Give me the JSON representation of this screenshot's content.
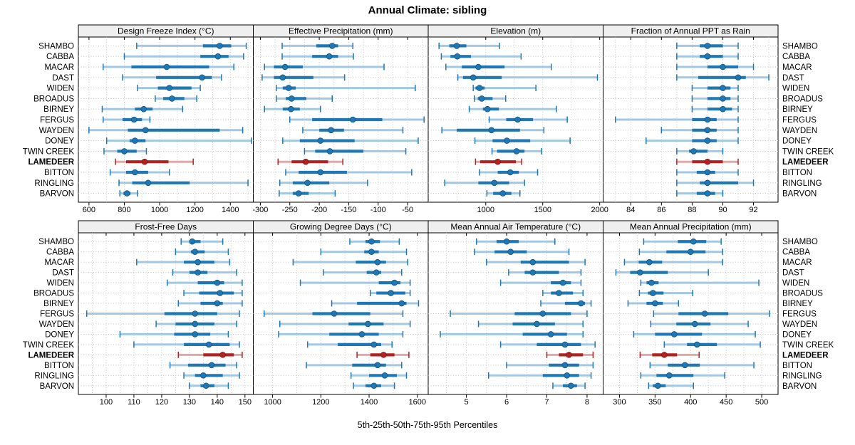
{
  "title": "Annual Climate: sibling",
  "xlabel": "5th-25th-50th-75th-95th Percentiles",
  "highlight_station": "LAMEDEER",
  "stations": [
    "SHAMBO",
    "CABBA",
    "MACAR",
    "DAST",
    "WIDEN",
    "BROADUS",
    "BIRNEY",
    "FERGUS",
    "WAYDEN",
    "DONEY",
    "TWIN CREEK",
    "LAMEDEER",
    "BITTON",
    "RINGLING",
    "BARVON"
  ],
  "colors": {
    "line": "#1F77B4",
    "line_light": "#A3C8E3",
    "line_dark": "#15557F",
    "highlight": "#B22222",
    "highlight_light": "#DFA8A8",
    "highlight_dark": "#7E1818",
    "strip_bg": "#EFEFEF",
    "panel_bg": "#FFFFFF",
    "border": "#000000",
    "grid": "#BFBFBF",
    "text": "#000000"
  },
  "chart_data": {
    "type": "dot-whisker-percentile-trellis",
    "percentiles": [
      "5th",
      "25th",
      "50th",
      "75th",
      "95th"
    ],
    "layout": {
      "rows": 2,
      "cols": 4,
      "legend": "none",
      "grid": "dotted"
    },
    "panels": [
      {
        "title": "Design Freeze Index (°C)",
        "row": 0,
        "col": 0,
        "domain": [
          540,
          1530
        ],
        "ticks": [
          600,
          800,
          1000,
          1200,
          1400
        ],
        "grid": [
          600,
          700,
          800,
          900,
          1000,
          1100,
          1200,
          1300,
          1400,
          1500
        ],
        "values": [
          [
            870,
            1245,
            1340,
            1405,
            1490
          ],
          [
            800,
            1230,
            1330,
            1390,
            1475
          ],
          [
            680,
            840,
            1040,
            1280,
            1420
          ],
          [
            790,
            980,
            1240,
            1295,
            1350
          ],
          [
            875,
            990,
            1055,
            1180,
            1230
          ],
          [
            975,
            1020,
            1070,
            1140,
            1210
          ],
          [
            675,
            860,
            910,
            960,
            1130
          ],
          [
            680,
            790,
            855,
            900,
            945
          ],
          [
            600,
            820,
            920,
            1340,
            1470
          ],
          [
            700,
            830,
            860,
            920,
            1520
          ],
          [
            685,
            760,
            800,
            870,
            925
          ],
          [
            750,
            810,
            915,
            1050,
            1190
          ],
          [
            720,
            810,
            860,
            935,
            1055
          ],
          [
            770,
            845,
            935,
            1170,
            1500
          ],
          [
            775,
            795,
            815,
            835,
            875
          ]
        ]
      },
      {
        "title": "Effective Precipitation (mm)",
        "row": 0,
        "col": 1,
        "domain": [
          -312,
          -15
        ],
        "ticks": [
          -300,
          -250,
          -200,
          -150,
          -100,
          -50
        ],
        "grid": [
          -300,
          -275,
          -250,
          -225,
          -200,
          -175,
          -150,
          -125,
          -100,
          -75,
          -50,
          -25
        ],
        "values": [
          [
            -263,
            -205,
            -178,
            -168,
            -143
          ],
          [
            -263,
            -212,
            -183,
            -168,
            -142
          ],
          [
            -293,
            -277,
            -258,
            -228,
            -90
          ],
          [
            -297,
            -277,
            -262,
            -210,
            -157
          ],
          [
            -273,
            -262,
            -252,
            -240,
            -37
          ],
          [
            -273,
            -257,
            -247,
            -222,
            -178
          ],
          [
            -293,
            -262,
            -248,
            -233,
            -198
          ],
          [
            -250,
            -212,
            -143,
            -93,
            -22
          ],
          [
            -228,
            -200,
            -180,
            -158,
            -58
          ],
          [
            -262,
            -233,
            -198,
            -140,
            -32
          ],
          [
            -225,
            -207,
            -182,
            -125,
            -53
          ],
          [
            -270,
            -247,
            -223,
            -185,
            -160
          ],
          [
            -257,
            -235,
            -198,
            -153,
            -43
          ],
          [
            -267,
            -245,
            -220,
            -183,
            -118
          ],
          [
            -268,
            -245,
            -235,
            -218,
            -173
          ]
        ]
      },
      {
        "title": "Elevation (m)",
        "row": 0,
        "col": 2,
        "domain": [
          495,
          2030
        ],
        "ticks": [
          1000,
          1500,
          2000
        ],
        "grid": [
          500,
          750,
          1000,
          1250,
          1500,
          1750,
          2000
        ],
        "values": [
          [
            590,
            680,
            745,
            830,
            1120
          ],
          [
            610,
            690,
            750,
            870,
            1310
          ],
          [
            650,
            790,
            935,
            1165,
            1575
          ],
          [
            755,
            800,
            890,
            1140,
            1980
          ],
          [
            890,
            910,
            945,
            990,
            1440
          ],
          [
            900,
            930,
            965,
            1060,
            1175
          ],
          [
            855,
            975,
            1015,
            1115,
            1620
          ],
          [
            1030,
            1180,
            1280,
            1415,
            1715
          ],
          [
            615,
            745,
            1050,
            1300,
            1510
          ],
          [
            905,
            1060,
            1185,
            1390,
            1740
          ],
          [
            1055,
            1100,
            1270,
            1340,
            1490
          ],
          [
            910,
            950,
            1105,
            1265,
            1315
          ],
          [
            945,
            1105,
            1215,
            1290,
            1455
          ],
          [
            640,
            935,
            1075,
            1205,
            1340
          ],
          [
            1010,
            1065,
            1150,
            1225,
            1300
          ]
        ]
      },
      {
        "title": "Fraction of Annual PPT as Rain",
        "row": 0,
        "col": 3,
        "domain": [
          82.2,
          93.6
        ],
        "ticks": [
          84,
          86,
          88,
          90,
          92
        ],
        "grid": [
          83,
          84,
          85,
          86,
          87,
          88,
          89,
          90,
          91,
          92,
          93
        ],
        "values": [
          [
            87,
            88.5,
            89,
            90,
            91
          ],
          [
            87,
            88.5,
            89,
            90,
            91
          ],
          [
            87,
            89,
            90,
            91,
            92
          ],
          [
            87,
            88.4,
            91,
            91.5,
            93
          ],
          [
            88,
            89,
            90,
            90.5,
            91
          ],
          [
            88,
            89,
            90,
            90.5,
            91
          ],
          [
            88,
            89,
            90,
            90.6,
            91
          ],
          [
            83,
            88,
            89,
            89.6,
            91
          ],
          [
            86,
            88,
            89,
            89.6,
            91
          ],
          [
            85,
            88,
            89,
            89.6,
            91
          ],
          [
            87,
            87.8,
            88.1,
            89,
            90
          ],
          [
            87,
            88,
            89,
            90,
            91
          ],
          [
            87,
            88.3,
            89,
            89.5,
            91
          ],
          [
            87,
            88.5,
            89,
            91,
            92
          ],
          [
            87,
            88.3,
            89,
            89.5,
            90
          ]
        ]
      },
      {
        "title": "Frost-Free Days",
        "row": 1,
        "col": 0,
        "domain": [
          90,
          153
        ],
        "ticks": [
          100,
          110,
          120,
          130,
          140,
          150
        ],
        "grid": [
          90,
          95,
          100,
          105,
          110,
          115,
          120,
          125,
          130,
          135,
          140,
          145,
          150
        ],
        "values": [
          [
            127,
            130,
            131,
            134,
            142
          ],
          [
            125,
            130.5,
            132,
            135.5,
            144
          ],
          [
            111,
            128,
            133,
            139,
            144.5
          ],
          [
            124,
            130,
            133,
            136.5,
            147
          ],
          [
            122,
            133,
            140,
            142.5,
            149
          ],
          [
            128,
            133.5,
            141,
            146,
            149
          ],
          [
            126,
            134,
            140,
            142,
            149
          ],
          [
            93,
            121,
            132,
            140,
            148
          ],
          [
            118,
            125,
            132,
            139,
            147
          ],
          [
            105,
            124.5,
            132,
            137.5,
            144
          ],
          [
            110,
            128,
            137,
            144.5,
            148
          ],
          [
            126,
            135,
            142,
            146,
            149
          ],
          [
            123,
            129.5,
            138,
            143,
            147
          ],
          [
            128,
            132,
            135,
            142,
            148
          ],
          [
            130,
            134,
            136,
            139,
            144
          ]
        ]
      },
      {
        "title": "Growing Degree Days (°C)",
        "row": 1,
        "col": 1,
        "domain": [
          920,
          1645
        ],
        "ticks": [
          1000,
          1200,
          1400,
          1600
        ],
        "grid": [
          1000,
          1100,
          1200,
          1300,
          1400,
          1500,
          1600
        ],
        "values": [
          [
            1320,
            1385,
            1410,
            1445,
            1525
          ],
          [
            1200,
            1380,
            1410,
            1440,
            1555
          ],
          [
            1085,
            1345,
            1435,
            1470,
            1560
          ],
          [
            1210,
            1390,
            1430,
            1450,
            1535
          ],
          [
            1115,
            1440,
            1505,
            1530,
            1570
          ],
          [
            1405,
            1430,
            1490,
            1550,
            1570
          ],
          [
            1245,
            1350,
            1535,
            1555,
            1605
          ],
          [
            965,
            1165,
            1255,
            1405,
            1540
          ],
          [
            1030,
            1315,
            1395,
            1460,
            1570
          ],
          [
            1025,
            1235,
            1370,
            1440,
            1540
          ],
          [
            1145,
            1270,
            1420,
            1450,
            1495
          ],
          [
            1350,
            1405,
            1460,
            1505,
            1565
          ],
          [
            1140,
            1330,
            1435,
            1470,
            1535
          ],
          [
            1325,
            1400,
            1465,
            1515,
            1555
          ],
          [
            1335,
            1385,
            1420,
            1450,
            1505
          ]
        ]
      },
      {
        "title": "Mean Annual Air Temperature (°C)",
        "row": 1,
        "col": 2,
        "domain": [
          4.05,
          8.4
        ],
        "ticks": [
          5,
          6,
          7,
          8
        ],
        "grid": [
          4.5,
          5,
          5.5,
          6,
          6.5,
          7,
          7.5,
          8
        ],
        "values": [
          [
            5.25,
            5.75,
            6.0,
            6.3,
            7.2
          ],
          [
            5.2,
            5.7,
            6.1,
            6.5,
            7.55
          ],
          [
            5.5,
            6.35,
            6.65,
            7.55,
            7.95
          ],
          [
            6.05,
            6.45,
            6.65,
            7.3,
            7.85
          ],
          [
            5.85,
            7.1,
            7.4,
            7.6,
            7.85
          ],
          [
            6.9,
            7.1,
            7.3,
            7.65,
            7.9
          ],
          [
            6.85,
            7.45,
            7.85,
            7.95,
            8.1
          ],
          [
            4.6,
            6.2,
            6.9,
            7.6,
            8.0
          ],
          [
            5.3,
            6.15,
            6.75,
            7.2,
            7.9
          ],
          [
            4.35,
            6.4,
            7.1,
            7.5,
            7.9
          ],
          [
            5.85,
            6.75,
            7.45,
            7.85,
            8.2
          ],
          [
            7.0,
            7.3,
            7.55,
            7.9,
            8.15
          ],
          [
            6.0,
            7.05,
            7.45,
            7.8,
            8.15
          ],
          [
            5.55,
            6.9,
            7.5,
            7.8,
            8.1
          ],
          [
            7.15,
            7.4,
            7.6,
            7.75,
            7.95
          ]
        ]
      },
      {
        "title": "Mean Annual Precipitation (mm)",
        "row": 1,
        "col": 3,
        "domain": [
          277,
          523
        ],
        "ticks": [
          300,
          350,
          400,
          450,
          500
        ],
        "grid": [
          275,
          300,
          325,
          350,
          375,
          400,
          425,
          450,
          475,
          500,
          525
        ],
        "values": [
          [
            334,
            382,
            404,
            422,
            443
          ],
          [
            328,
            366,
            400,
            421,
            445
          ],
          [
            307,
            327,
            342,
            360,
            445
          ],
          [
            295,
            315,
            329,
            368,
            425
          ],
          [
            330,
            338,
            345,
            355,
            496
          ],
          [
            328,
            340,
            347,
            362,
            403
          ],
          [
            312,
            338,
            350,
            361,
            383
          ],
          [
            348,
            383,
            420,
            453,
            511
          ],
          [
            344,
            380,
            406,
            428,
            481
          ],
          [
            320,
            350,
            377,
            416,
            491
          ],
          [
            363,
            395,
            409,
            437,
            498
          ],
          [
            329,
            346,
            363,
            381,
            412
          ],
          [
            343,
            368,
            392,
            413,
            489
          ],
          [
            330,
            352,
            370,
            404,
            448
          ],
          [
            341,
            347,
            354,
            365,
            404
          ]
        ]
      }
    ]
  }
}
